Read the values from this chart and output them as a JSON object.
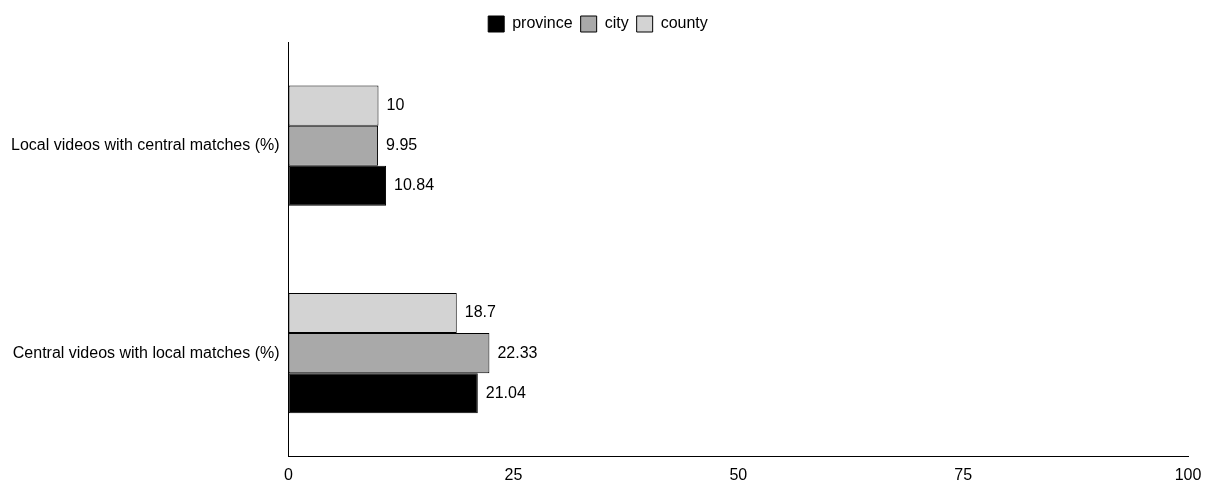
{
  "chart_data": {
    "type": "bar",
    "orientation": "horizontal",
    "categories": [
      "Local videos with central matches (%)",
      "Central videos with local matches (%)"
    ],
    "series": [
      {
        "name": "province",
        "color": "#000000",
        "values": [
          10.84,
          21.04
        ]
      },
      {
        "name": "city",
        "color": "#a9a9a9",
        "values": [
          9.95,
          22.33
        ]
      },
      {
        "name": "county",
        "color": "#d3d3d3",
        "values": [
          10,
          18.7
        ]
      }
    ],
    "xlim": [
      0,
      100
    ],
    "xticks": [
      0,
      25,
      50,
      75,
      100
    ],
    "grid": false,
    "legend": "top",
    "data_labels": true
  }
}
